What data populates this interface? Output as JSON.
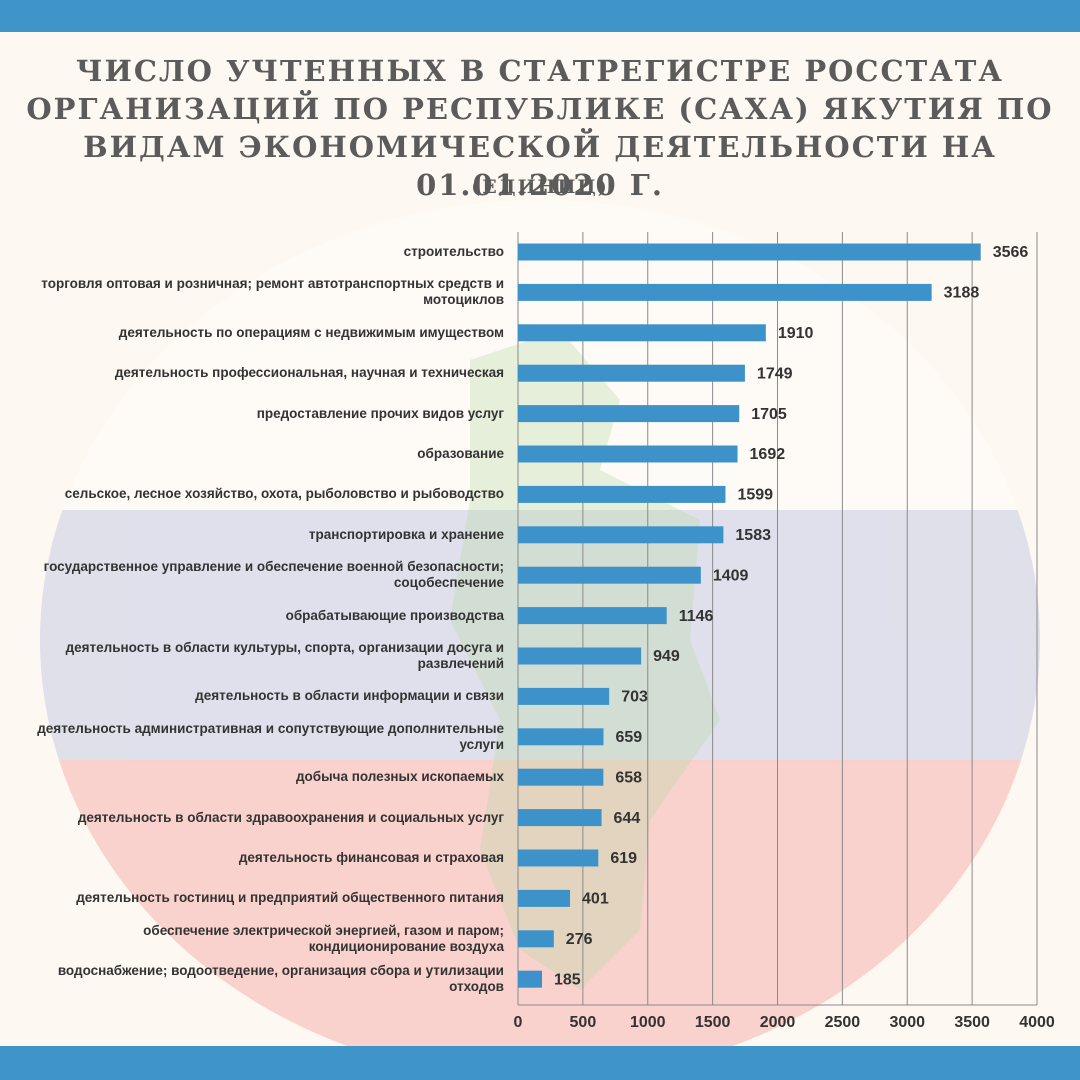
{
  "chart_data": {
    "type": "bar",
    "orientation": "horizontal",
    "title": "ЧИСЛО УЧТЕННЫХ В СТАТРЕГИСТРЕ РОССТАТА ОРГАНИЗАЦИЙ ПО РЕСПУБЛИКЕ (САХА) ЯКУТИЯ ПО ВИДАМ ЭКОНОМИЧЕСКОЙ ДЕЯТЕЛЬНОСТИ НА 01.01.2020 Г.",
    "subtitle": "(ЕДИНИЦ)",
    "categories": [
      "строительство",
      "торговля оптовая и розничная; ремонт автотранспортных средств и мотоциклов",
      "деятельность по операциям с недвижимым имуществом",
      "деятельность профессиональная, научная и техническая",
      "предоставление прочих видов услуг",
      "образование",
      "сельское, лесное хозяйство, охота, рыболовство и рыбоводство",
      "транспортировка и хранение",
      "государственное управление и обеспечение военной безопасности; соцобеспечение",
      "обрабатывающие производства",
      "деятельность в области культуры, спорта, организации досуга и развлечений",
      "деятельность в области информации и связи",
      "деятельность административная и сопутствующие дополнительные услуги",
      "добыча полезных ископаемых",
      "деятельность в области здравоохранения и социальных услуг",
      "деятельность финансовая и страховая",
      "деятельность гостиниц и предприятий общественного питания",
      "обеспечение электрической энергией, газом и паром; кондиционирование воздуха",
      "водоснабжение; водоотведение, организация сбора и утилизации отходов"
    ],
    "values": [
      3566,
      3188,
      1910,
      1749,
      1705,
      1692,
      1599,
      1583,
      1409,
      1146,
      949,
      703,
      659,
      658,
      644,
      619,
      401,
      276,
      185
    ],
    "color": "#3d93c9",
    "xlim": [
      0,
      4000
    ],
    "xticks": [
      0,
      500,
      1000,
      1500,
      2000,
      2500,
      3000,
      3500,
      4000
    ],
    "grid": true
  }
}
